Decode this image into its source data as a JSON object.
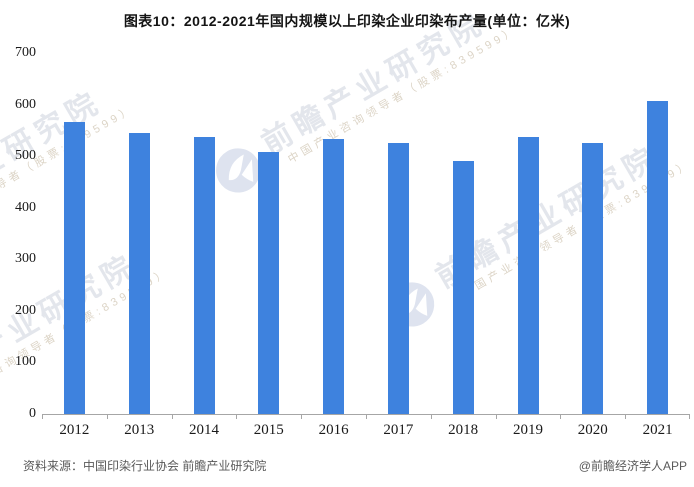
{
  "title": "图表10：2012-2021年国内规模以上印染企业印染布产量(单位：亿米)",
  "source_note": "资料来源：中国印染行业协会 前瞻产业研究院",
  "credit": "@前瞻经济学人APP",
  "watermark": {
    "brand_text": "前瞻产业研究院",
    "sub_text": "中国产业咨询领导者（股票:839599）",
    "logo_icon": "qianzhan-logo"
  },
  "colors": {
    "bar": "#3E82DE",
    "axis": "#A6A6A6",
    "tick_text": "#1A1A1A",
    "footer_text": "#595959",
    "watermark_text": "#E3E6EC",
    "watermark_subtext": "#DCD4C6"
  },
  "chart_data": {
    "type": "bar",
    "title": "图表10：2012-2021年国内规模以上印染企业印染布产量(单位：亿米)",
    "unit": "亿米",
    "categories": [
      "2012",
      "2013",
      "2014",
      "2015",
      "2016",
      "2017",
      "2018",
      "2019",
      "2020",
      "2021"
    ],
    "values": [
      566,
      545,
      538,
      509,
      533,
      526,
      491,
      538,
      526,
      606
    ],
    "xlabel": "",
    "ylabel": "",
    "ylim": [
      0,
      700
    ],
    "y_ticks": [
      0,
      100,
      200,
      300,
      400,
      500,
      600,
      700
    ],
    "grid": false,
    "legend": false,
    "bar_color": "#3E82DE"
  }
}
